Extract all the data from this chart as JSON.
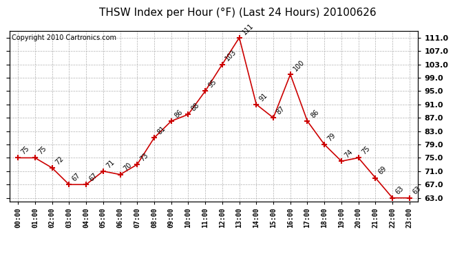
{
  "title": "THSW Index per Hour (°F) (Last 24 Hours) 20100626",
  "copyright": "Copyright 2010 Cartronics.com",
  "hours": [
    "00:00",
    "01:00",
    "02:00",
    "03:00",
    "04:00",
    "05:00",
    "06:00",
    "07:00",
    "08:00",
    "09:00",
    "10:00",
    "11:00",
    "12:00",
    "13:00",
    "14:00",
    "15:00",
    "16:00",
    "17:00",
    "18:00",
    "19:00",
    "20:00",
    "21:00",
    "22:00",
    "23:00"
  ],
  "values": [
    75,
    75,
    72,
    67,
    67,
    71,
    70,
    73,
    81,
    86,
    88,
    95,
    103,
    111,
    91,
    87,
    100,
    86,
    79,
    74,
    75,
    69,
    63,
    63
  ],
  "line_color": "#cc0000",
  "marker_color": "#cc0000",
  "bg_color": "#ffffff",
  "grid_color": "#b0b0b0",
  "ylim_min": 63.0,
  "ylim_max": 111.0,
  "ytick_step": 4.0,
  "title_fontsize": 11,
  "copyright_fontsize": 7,
  "label_fontsize": 7
}
